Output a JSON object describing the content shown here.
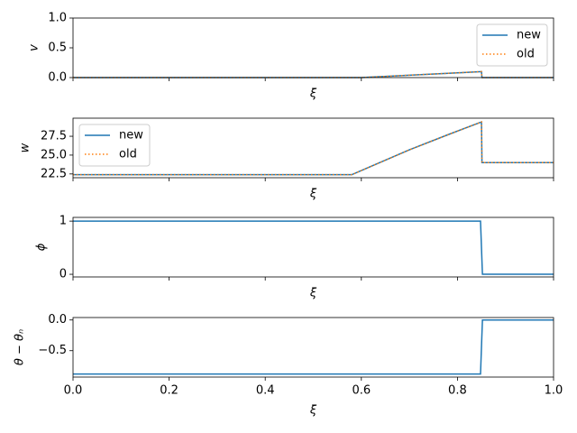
{
  "chart_data": [
    {
      "type": "line",
      "ylabel": "v",
      "xlabel": "ξ",
      "xlim": [
        0,
        1
      ],
      "ylim": [
        0,
        1
      ],
      "yticks": [
        {
          "value": 0,
          "label": "0.0"
        },
        {
          "value": 0.5,
          "label": "0.5"
        },
        {
          "value": 1,
          "label": "1.0"
        }
      ],
      "x": [
        0,
        0.6,
        0.7,
        0.8,
        0.85,
        0.851,
        1
      ],
      "series": [
        {
          "name": "new",
          "color": "#1f77b4",
          "linestyle": "solid",
          "values": [
            0,
            0,
            0.04,
            0.08,
            0.1,
            0,
            0
          ]
        },
        {
          "name": "old",
          "color": "#ff7f0e",
          "linestyle": "dotted",
          "values": [
            0,
            0,
            0.04,
            0.08,
            0.1,
            0,
            0
          ]
        }
      ],
      "legend": "upper right"
    },
    {
      "type": "line",
      "ylabel": "w",
      "xlabel": "ξ",
      "xlim": [
        0,
        1
      ],
      "ylim": [
        22.0,
        29.9
      ],
      "yticks": [
        22.5,
        {
          "value": 25,
          "label": "25.0"
        },
        27.5
      ],
      "x": [
        0,
        0.58,
        0.62,
        0.7,
        0.78,
        0.85,
        0.851,
        1
      ],
      "series": [
        {
          "name": "new",
          "color": "#1f77b4",
          "linestyle": "solid",
          "values": [
            22.4,
            22.4,
            23.5,
            25.7,
            27.7,
            29.4,
            24.0,
            24.0
          ]
        },
        {
          "name": "old",
          "color": "#ff7f0e",
          "linestyle": "dotted",
          "values": [
            22.4,
            22.4,
            23.5,
            25.7,
            27.7,
            29.4,
            24.0,
            24.0
          ]
        }
      ],
      "legend": "upper left"
    },
    {
      "type": "line",
      "ylabel": "ϕ",
      "xlabel": "ξ",
      "xlim": [
        0,
        1
      ],
      "ylim": [
        -0.05,
        1.07
      ],
      "yticks": [
        0,
        1
      ],
      "x": [
        0,
        0.848,
        0.852,
        1
      ],
      "values": [
        1,
        1,
        0,
        0
      ],
      "color": "#1f77b4"
    },
    {
      "type": "line",
      "ylabel": "θ − θₙ",
      "xlabel": "ξ",
      "xlim": [
        0,
        1
      ],
      "ylim": [
        -0.93,
        0.04
      ],
      "yticks": [
        {
          "value": -0.5,
          "label": "−0.5"
        },
        {
          "value": 0,
          "label": "0.0"
        }
      ],
      "xticks": [
        {
          "value": 0,
          "label": "0.0"
        },
        {
          "value": 0.2,
          "label": "0.2"
        },
        {
          "value": 0.4,
          "label": "0.4"
        },
        {
          "value": 0.6,
          "label": "0.6"
        },
        {
          "value": 0.8,
          "label": "0.8"
        },
        {
          "value": 1,
          "label": "1.0"
        }
      ],
      "x": [
        0,
        0.848,
        0.852,
        1
      ],
      "values": [
        -0.88,
        -0.88,
        0,
        0
      ],
      "color": "#1f77b4"
    }
  ]
}
